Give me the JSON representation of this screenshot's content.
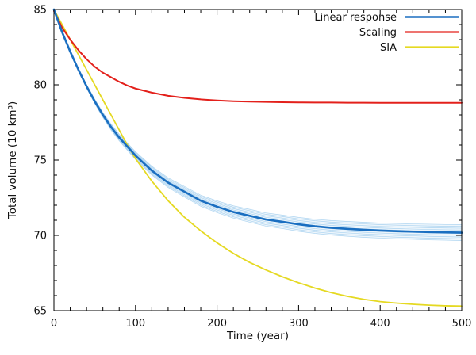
{
  "figure": {
    "background": "#ffffff",
    "axis_color": "#000000"
  },
  "chart_data": {
    "type": "line",
    "title": "",
    "xlabel": "Time (year)",
    "ylabel": "Total volume (10 km³)",
    "xlim": [
      0,
      500
    ],
    "ylim": [
      65,
      85
    ],
    "xticks": [
      0,
      100,
      200,
      300,
      400,
      500
    ],
    "yticks": [
      65,
      70,
      75,
      80,
      85
    ],
    "x_minor_step": 20,
    "y_minor_step": 1,
    "grid": false,
    "legend_position": "top-right",
    "x": [
      0,
      10,
      20,
      30,
      40,
      50,
      60,
      70,
      80,
      90,
      100,
      120,
      140,
      160,
      180,
      200,
      220,
      240,
      260,
      280,
      300,
      320,
      340,
      360,
      380,
      400,
      420,
      440,
      460,
      480,
      500
    ],
    "series": [
      {
        "name": "Linear response",
        "color": "#1b6fc1",
        "width": 2.6,
        "values": [
          85.0,
          83.5,
          82.2,
          81.0,
          79.9,
          78.9,
          78.0,
          77.2,
          76.5,
          75.9,
          75.3,
          74.3,
          73.5,
          72.9,
          72.3,
          71.9,
          71.55,
          71.3,
          71.05,
          70.9,
          70.73,
          70.6,
          70.5,
          70.43,
          70.37,
          70.32,
          70.28,
          70.25,
          70.22,
          70.2,
          70.18
        ],
        "band": {
          "color": "#a9d2ef",
          "fill_opacity": 0.2,
          "line_width": 0.7,
          "ensemble_fractions": [
            -1,
            -0.78,
            -0.55,
            -0.33,
            -0.12,
            0.12,
            0.33,
            0.55,
            0.78,
            1
          ],
          "halfwidth": [
            0,
            0.03,
            0.07,
            0.09,
            0.12,
            0.15,
            0.17,
            0.2,
            0.22,
            0.24,
            0.26,
            0.29,
            0.32,
            0.35,
            0.37,
            0.39,
            0.41,
            0.43,
            0.44,
            0.45,
            0.46,
            0.47,
            0.48,
            0.49,
            0.5,
            0.5,
            0.51,
            0.51,
            0.52,
            0.52,
            0.53
          ]
        }
      },
      {
        "name": "Scaling",
        "color": "#e3201b",
        "width": 2.0,
        "values": [
          84.9,
          83.8,
          83.0,
          82.3,
          81.7,
          81.2,
          80.8,
          80.5,
          80.2,
          79.95,
          79.75,
          79.48,
          79.27,
          79.13,
          79.03,
          78.96,
          78.91,
          78.88,
          78.86,
          78.84,
          78.83,
          78.82,
          78.82,
          78.81,
          78.81,
          78.8,
          78.8,
          78.8,
          78.8,
          78.8,
          78.8
        ]
      },
      {
        "name": "SIA",
        "color": "#e5d922",
        "width": 1.8,
        "values": [
          85.0,
          84.0,
          83.0,
          82.0,
          81.0,
          80.0,
          79.0,
          78.0,
          77.0,
          76.0,
          75.1,
          73.6,
          72.3,
          71.2,
          70.3,
          69.5,
          68.8,
          68.2,
          67.7,
          67.25,
          66.85,
          66.5,
          66.2,
          65.95,
          65.75,
          65.6,
          65.5,
          65.42,
          65.36,
          65.32,
          65.3
        ]
      }
    ]
  }
}
